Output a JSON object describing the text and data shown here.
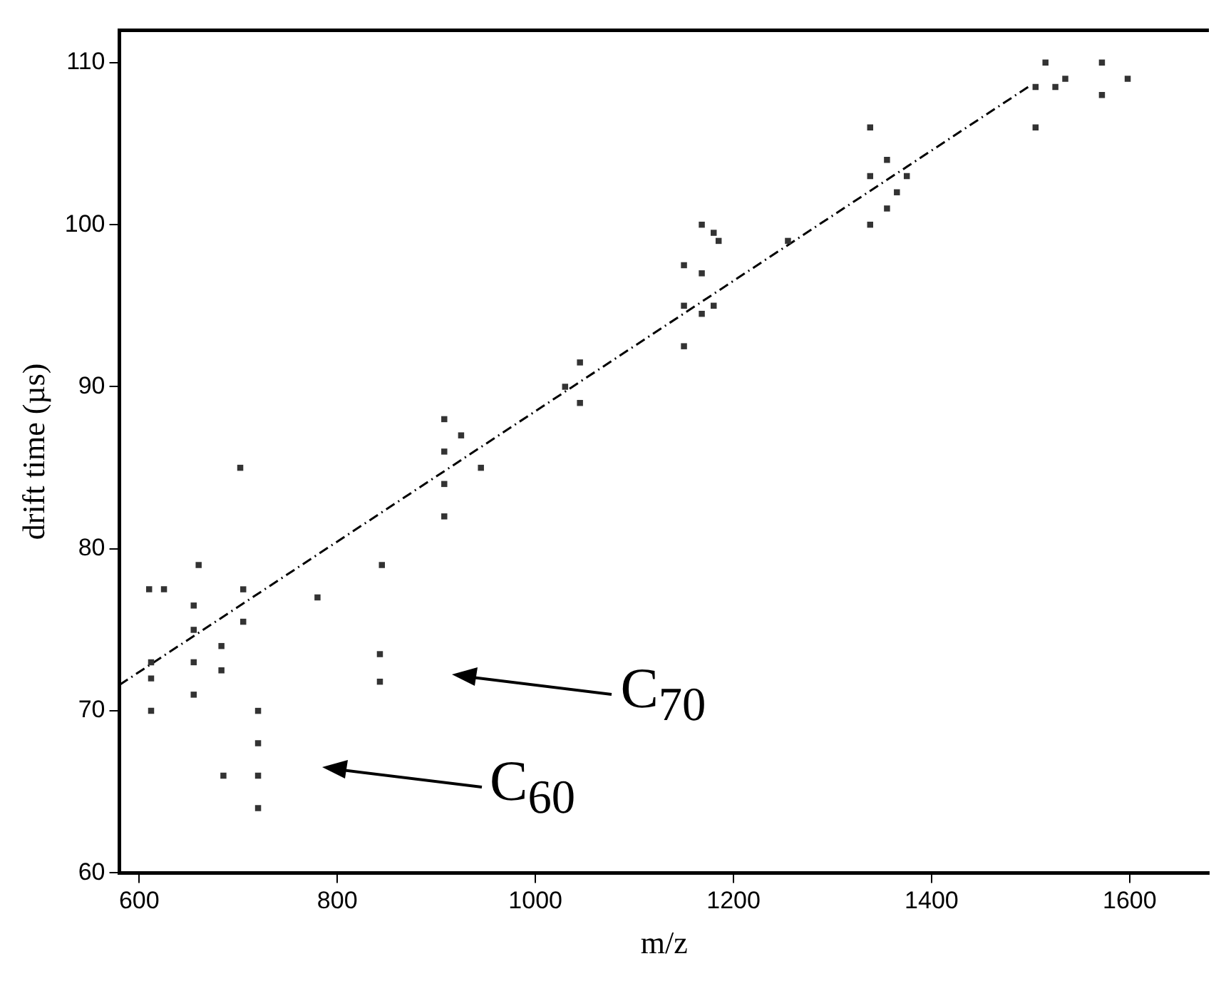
{
  "chart_data": {
    "type": "scatter",
    "xlabel": "m/z",
    "ylabel": "drift time (µs)",
    "xlim": [
      580,
      1680
    ],
    "xticks": [
      600,
      800,
      1000,
      1200,
      1400,
      1600
    ],
    "ylim": [
      60,
      112
    ],
    "yticks": [
      60,
      70,
      80,
      90,
      100,
      110
    ],
    "grid": false,
    "legend": false,
    "marker": "square",
    "series": [
      {
        "type": "scatter",
        "color": "#333333",
        "x": [
          612,
          612,
          612,
          610,
          625,
          655,
          655,
          655,
          655,
          660,
          683,
          683,
          685,
          702,
          705,
          705,
          720,
          720,
          720,
          720,
          780,
          843,
          843,
          845,
          908,
          908,
          908,
          908,
          925,
          945,
          1030,
          1045,
          1045,
          1150,
          1150,
          1150,
          1168,
          1168,
          1168,
          1180,
          1180,
          1185,
          1255,
          1338,
          1338,
          1338,
          1355,
          1355,
          1365,
          1375,
          1505,
          1505,
          1515,
          1525,
          1535,
          1572,
          1572,
          1598
        ],
        "values": [
          70,
          72,
          73,
          77.5,
          77.5,
          71,
          73,
          75,
          76.5,
          79,
          72.5,
          74,
          66,
          85,
          75.5,
          77.5,
          64,
          66,
          68,
          70,
          77,
          71.8,
          73.5,
          79,
          82,
          84,
          86,
          88,
          87,
          85,
          90,
          89,
          91.5,
          92.5,
          95,
          97.5,
          94.5,
          97,
          100,
          95,
          99.5,
          99,
          99,
          100,
          103,
          106,
          101,
          104,
          102,
          103,
          106,
          108.5,
          110,
          108.5,
          109,
          108,
          110,
          109
        ]
      },
      {
        "type": "line",
        "color": "#000000",
        "line_style": "dashed",
        "marker": "none",
        "x": [
          580,
          1500
        ],
        "values": [
          71.6,
          108.6
        ]
      }
    ],
    "annotations": [
      "C$_{70}$",
      "C$_{60}$"
    ]
  }
}
